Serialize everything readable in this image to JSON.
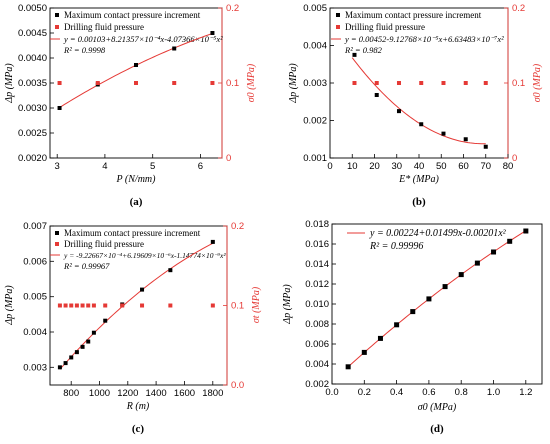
{
  "colors": {
    "black": "#000000",
    "red": "#e53935",
    "fit": "#e53935"
  },
  "chart_data": [
    {
      "type": "scatter",
      "panel_label": "(a)",
      "xlabel": "P (N/mm)",
      "ylabel": "Δp (MPa)",
      "y2label": "σ0 (MPa)",
      "xlim": [
        2.6,
        6.2
      ],
      "ylim": [
        0.002,
        0.005
      ],
      "y2lim": [
        0,
        0.2
      ],
      "xticks": [
        "3",
        "4",
        "5",
        "6"
      ],
      "yticks": [
        "0.0020",
        "0.0025",
        "0.0030",
        "0.0035",
        "0.0040",
        "0.0045",
        "0.0050"
      ],
      "y2ticks": [
        "0",
        "0.1",
        "0.2"
      ],
      "legend": [
        "Maximum contact pressure increment",
        "Drilling fluid pressure"
      ],
      "equation": "y = 0.00103+8.21357×10⁻⁴x-4.07366×10⁻⁵x²",
      "r2": "R² = 0.9998",
      "series": [
        {
          "name": "Maximum contact pressure increment",
          "axis": "left",
          "x": [
            2.8,
            3.6,
            4.4,
            5.2,
            6.0
          ],
          "y": [
            0.003,
            0.00347,
            0.00386,
            0.00419,
            0.0045
          ]
        },
        {
          "name": "Drilling fluid pressure",
          "axis": "right",
          "x": [
            2.8,
            3.6,
            4.4,
            5.2,
            6.0
          ],
          "y": [
            0.1,
            0.1,
            0.1,
            0.1,
            0.1
          ]
        }
      ],
      "fit": {
        "coef": [
          0.00103,
          0.000821357,
          -4.07366e-05
        ],
        "xrange": [
          2.8,
          6.0
        ]
      }
    },
    {
      "type": "scatter",
      "panel_label": "(b)",
      "xlabel": "E* (MPa)",
      "ylabel": "Δp (MPa)",
      "y2label": "σ0 (MPa)",
      "xlim": [
        0,
        80
      ],
      "ylim": [
        0.001,
        0.005
      ],
      "y2lim": [
        0,
        0.2
      ],
      "xticks": [
        "0",
        "10",
        "20",
        "30",
        "40",
        "50",
        "60",
        "70",
        "80"
      ],
      "yticks": [
        "0.001",
        "0.002",
        "0.003",
        "0.004",
        "0.005"
      ],
      "y2ticks": [
        "0",
        "0.1",
        "0.2"
      ],
      "legend": [
        "Maximum contact pressure increment",
        "Drilling fluid pressure"
      ],
      "equation": "y = 0.00452-9.12768×10⁻⁵x+6.63483×10⁻⁷x²",
      "r2": "R² = 0.982",
      "series": [
        {
          "name": "Maximum contact pressure increment",
          "axis": "left",
          "x": [
            11,
            21,
            31,
            41,
            51,
            61,
            70
          ],
          "y": [
            0.00375,
            0.00268,
            0.00225,
            0.0019,
            0.00165,
            0.0015,
            0.0013
          ]
        },
        {
          "name": "Drilling fluid pressure",
          "axis": "right",
          "x": [
            11,
            21,
            31,
            41,
            51,
            61,
            70
          ],
          "y": [
            0.1,
            0.1,
            0.1,
            0.1,
            0.1,
            0.1,
            0.1
          ]
        }
      ],
      "fit": {
        "coef": [
          0.00452,
          -9.12768e-05,
          6.63483e-07
        ],
        "xrange": [
          10,
          70
        ]
      }
    },
    {
      "type": "scatter",
      "panel_label": "(c)",
      "xlabel": "R (m)",
      "ylabel": "Δp (MPa)",
      "y2label": "σt (MPa)",
      "xlim": [
        650,
        1900
      ],
      "ylim": [
        0.0025,
        0.007
      ],
      "y2lim": [
        0,
        0.2
      ],
      "xticks": [
        "800",
        "1000",
        "1200",
        "1400",
        "1600",
        "1800"
      ],
      "yticks": [
        "0.003",
        "0.004",
        "0.005",
        "0.006",
        "0.007"
      ],
      "y2ticks": [
        "0.0",
        "0.1",
        "0.2"
      ],
      "legend": [
        "Maximum contact pressure increment",
        "Drilling fluid pressure"
      ],
      "equation": "y = -9.22667×10⁻⁴+6.19609×10⁻⁶x-1.14774×10⁻⁹x²",
      "r2": "R² = 0.99967",
      "series": [
        {
          "name": "Maximum contact pressure increment",
          "axis": "left",
          "x": [
            720,
            760,
            800,
            840,
            880,
            920,
            960,
            1040,
            1160,
            1300,
            1500,
            1800
          ],
          "y": [
            0.003,
            0.00312,
            0.00328,
            0.00343,
            0.00358,
            0.00373,
            0.00398,
            0.00432,
            0.00478,
            0.0052,
            0.00575,
            0.00655
          ]
        },
        {
          "name": "Drilling fluid pressure",
          "axis": "right",
          "x": [
            720,
            760,
            800,
            840,
            880,
            920,
            960,
            1040,
            1160,
            1300,
            1500,
            1800
          ],
          "y": [
            0.1,
            0.1,
            0.1,
            0.1,
            0.1,
            0.1,
            0.1,
            0.1,
            0.1,
            0.1,
            0.1,
            0.1
          ]
        }
      ],
      "fit": {
        "coef": [
          -0.000922667,
          6.19609e-06,
          -1.14774e-09
        ],
        "xrange": [
          720,
          1800
        ]
      }
    },
    {
      "type": "scatter",
      "panel_label": "(d)",
      "xlabel": "σ0 (MPa)",
      "ylabel": "Δp (MPa)",
      "xlim": [
        0.0,
        1.3
      ],
      "ylim": [
        0.002,
        0.018
      ],
      "xticks": [
        "0.0",
        "0.2",
        "0.4",
        "0.6",
        "0.8",
        "1.0",
        "1.2"
      ],
      "yticks": [
        "0.002",
        "0.004",
        "0.006",
        "0.008",
        "0.010",
        "0.012",
        "0.014",
        "0.016",
        "0.018"
      ],
      "equation": "y = 0.00224+0.01499x-0.00201x²",
      "r2": "R² = 0.99996",
      "series": [
        {
          "name": "",
          "axis": "left",
          "x": [
            0.1,
            0.2,
            0.3,
            0.4,
            0.5,
            0.6,
            0.7,
            0.8,
            0.9,
            1.0,
            1.1,
            1.2
          ],
          "y": [
            0.00372,
            0.00516,
            0.00656,
            0.00792,
            0.00924,
            0.01051,
            0.01174,
            0.01294,
            0.01409,
            0.0152,
            0.01627,
            0.0173
          ]
        }
      ],
      "fit": {
        "coef": [
          0.00224,
          0.01499,
          -0.00201
        ],
        "xrange": [
          0.1,
          1.2
        ]
      }
    }
  ]
}
